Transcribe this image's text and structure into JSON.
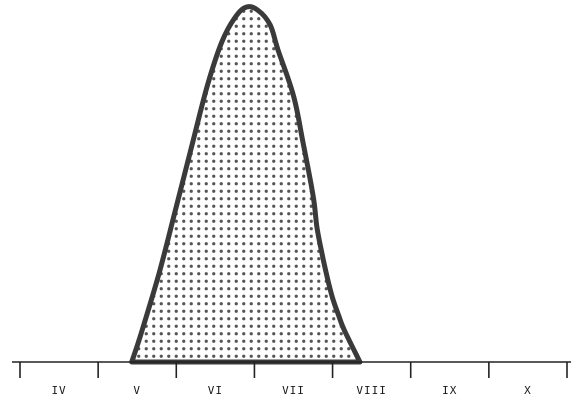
{
  "chart_data": {
    "type": "area",
    "categories": [
      "IV",
      "V",
      "VI",
      "VII",
      "VIII",
      "IX",
      "X"
    ],
    "x_domain": [
      0,
      7
    ],
    "y_domain": [
      0,
      1
    ],
    "grid": false,
    "fill_pattern": "dotted",
    "colors": {
      "outline": "#3a3a3a",
      "dots": "#555555",
      "axis": "#222222",
      "background": "#ffffff"
    },
    "outline": {
      "x": [
        1.43,
        1.55,
        1.78,
        1.98,
        2.2,
        2.4,
        2.58,
        2.75,
        2.9,
        3.05,
        3.2,
        3.3,
        3.5,
        3.62,
        3.75,
        3.8,
        3.87,
        3.93,
        4.0,
        4.08,
        4.15,
        4.35
      ],
      "y": [
        0.0,
        0.08,
        0.25,
        0.42,
        0.61,
        0.78,
        0.9,
        0.97,
        1.0,
        0.99,
        0.95,
        0.88,
        0.75,
        0.62,
        0.47,
        0.38,
        0.3,
        0.24,
        0.18,
        0.13,
        0.09,
        0.0
      ]
    }
  }
}
